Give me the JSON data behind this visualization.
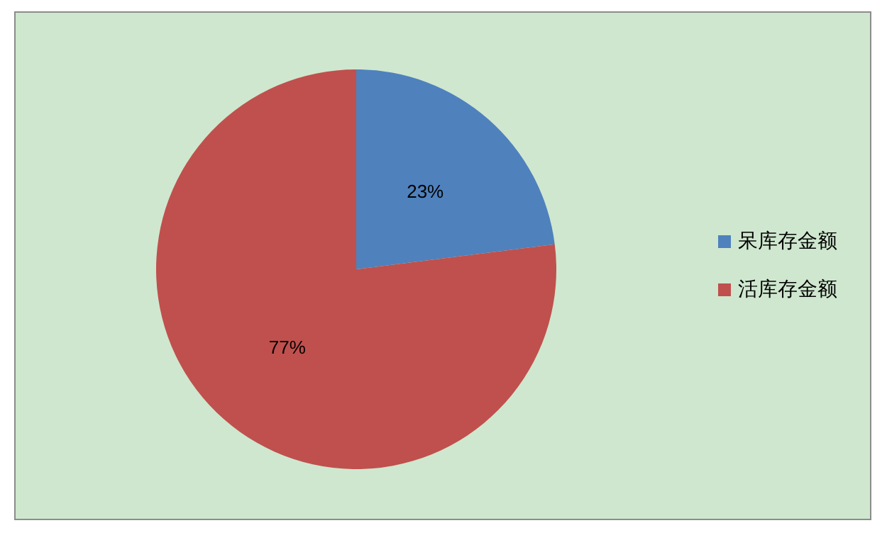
{
  "chart_data": {
    "type": "pie",
    "categories": [
      "呆库存金额",
      "活库存金额"
    ],
    "values": [
      23,
      77
    ],
    "colors": [
      "#4f81bd",
      "#c0504d"
    ],
    "value_labels": [
      "23%",
      "77%"
    ],
    "legend": "right"
  }
}
